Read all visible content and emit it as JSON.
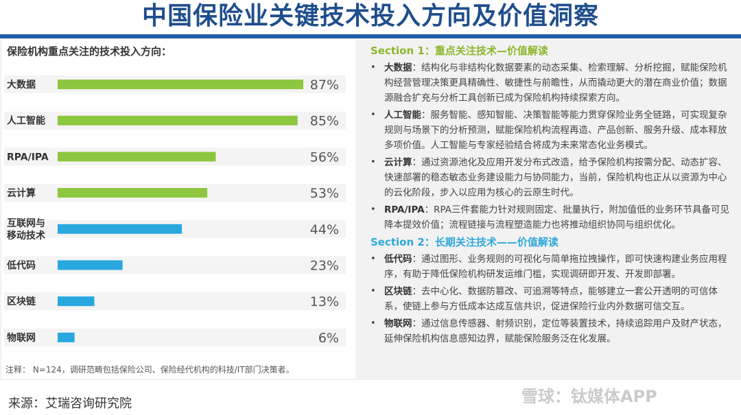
{
  "title": "中国保险业关键技术投入方向及价值洞察",
  "chart_heading": "保险机构重点关注的技术投入方向：",
  "chart_data": {
    "type": "bar",
    "orientation": "horizontal",
    "categories": [
      "大数据",
      "人工智能",
      "RPA/IPA",
      "云计算",
      "互联网与移动技术",
      "低代码",
      "区块链",
      "物联网"
    ],
    "category_lines": [
      [
        "大数据"
      ],
      [
        "人工智能"
      ],
      [
        "RPA/IPA"
      ],
      [
        "云计算"
      ],
      [
        "互联网与",
        "移动技术"
      ],
      [
        "低代码"
      ],
      [
        "区块链"
      ],
      [
        "物联网"
      ]
    ],
    "values": [
      87,
      85,
      56,
      53,
      44,
      23,
      13,
      6
    ],
    "value_labels": [
      "87%",
      "85%",
      "56%",
      "53%",
      "44%",
      "23%",
      "13%",
      "6%"
    ],
    "colors": [
      "#8dc63f",
      "#8dc63f",
      "#8dc63f",
      "#8dc63f",
      "#29a8e0",
      "#29a8e0",
      "#29a8e0",
      "#29a8e0"
    ],
    "xlim": [
      0,
      87
    ],
    "grid": false,
    "legend": "none"
  },
  "footnote": "注释： N=124，调研范畴包括保险公司、保险经代机构的科技/IT部门决策者。",
  "section1": {
    "heading": "Section 1：重点关注技术—价值解读",
    "items": [
      {
        "name": "大数据",
        "text": "：结构化与非结构化数据要素的动态采集、检索理解、分析挖掘，赋能保险机构经营管理决策更具精确性、敏捷性与前瞻性，从而撬动更大的潜在商业价值；数据源融合扩充与分析工具创新已成为保险机构持续探索方向。"
      },
      {
        "name": "人工智能",
        "text": "：服务智能、感知智能、决策智能等能力贯穿保险业务全链路，可实现复杂规则与场景下的分析预测，赋能保险机构流程再造、产品创新、服务升级、成本释放多项价值。人工智能与专家经验结合将成为未来常态化业务模式。"
      },
      {
        "name": "云计算",
        "text": "：通过资源池化及应用开发分布式改造，给予保险机构按需分配、动态扩容、快速部署的稳态敏态业务建设能力与协同能力，当前，保险机构也正从以资源为中心的云化阶段，步入以应用为核心的云原生时代。"
      },
      {
        "name": "RPA/IPA",
        "text": "：RPA三件套能力针对规则固定、批量执行，附加值低的业务环节具备可见降本提效价值；流程链接与流程塑造能力也将推动组织协同与组织优化。"
      }
    ]
  },
  "section2": {
    "heading": "Section 2：长期关注技术——价值解读",
    "items": [
      {
        "name": "低代码",
        "text": "：通过图形、业务规则的可视化与简单拖拉拽操作，即可快速构建业务应用程序，有助于降低保险机构研发运维门槛，实现调研即开发、开发即部署。"
      },
      {
        "name": "区块链",
        "text": "：去中心化、数据防篡改、可追溯等特点，能够建立一套公开透明的可信体系，使链上参与方低成本达成互信共识，促进保险行业内外数据可信交互。"
      },
      {
        "name": "物联网",
        "text": "：通过信息传感器、射频识别，定位等装置技术，持续追踪用户及财产状态，延伸保险机构信息感知边界，赋能保险服务泛在化发展。"
      }
    ]
  },
  "source": "来源：艾瑞咨询研究院",
  "watermark": "雪球：钛媒体APP"
}
